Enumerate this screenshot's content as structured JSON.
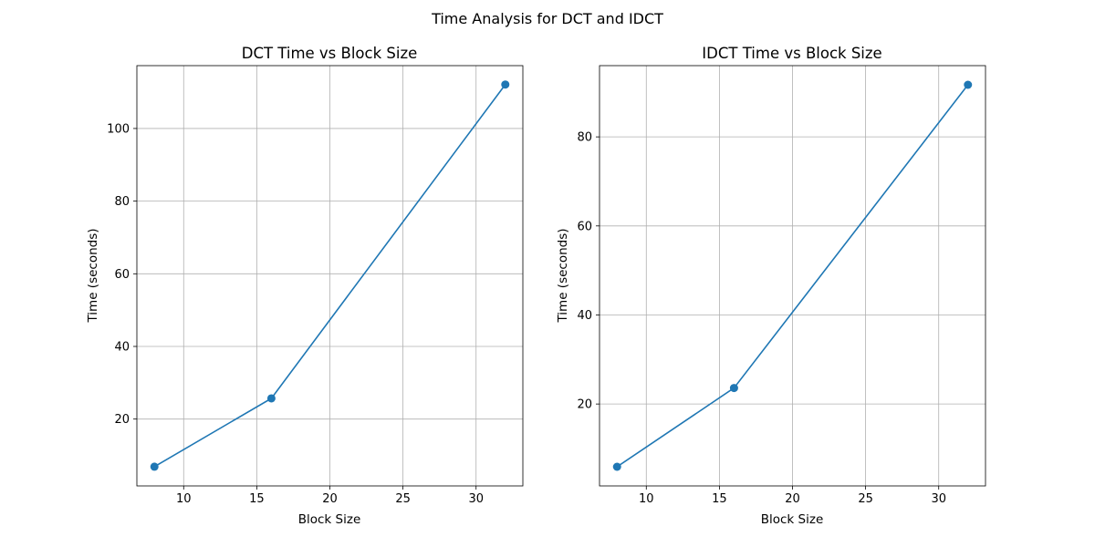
{
  "suptitle": "Time Analysis for DCT and IDCT",
  "style": {
    "line_color": "#1f77b4",
    "grid_color": "#b0b0b0",
    "axes_color": "#000000"
  },
  "chart_data": [
    {
      "type": "line",
      "title": "DCT Time vs Block Size",
      "xlabel": "Block Size",
      "ylabel": "Time (seconds)",
      "x": [
        8,
        16,
        32
      ],
      "series": [
        {
          "values": [
            6.9,
            25.7,
            112.1
          ],
          "marker": "circle"
        }
      ],
      "xlim": [
        6.8,
        33.2
      ],
      "ylim": [
        1.6,
        117.3
      ],
      "xticks": [
        10,
        15,
        20,
        25,
        30
      ],
      "yticks": [
        20,
        40,
        60,
        80,
        100
      ],
      "grid": true,
      "legend": "none"
    },
    {
      "type": "line",
      "title": "IDCT Time vs Block Size",
      "xlabel": "Block Size",
      "ylabel": "Time (seconds)",
      "x": [
        8,
        16,
        32
      ],
      "series": [
        {
          "values": [
            5.9,
            23.6,
            91.7
          ],
          "marker": "circle"
        }
      ],
      "xlim": [
        6.8,
        33.2
      ],
      "ylim": [
        1.6,
        96.0
      ],
      "xticks": [
        10,
        15,
        20,
        25,
        30
      ],
      "yticks": [
        20,
        40,
        60,
        80
      ],
      "grid": true,
      "legend": "none"
    }
  ]
}
